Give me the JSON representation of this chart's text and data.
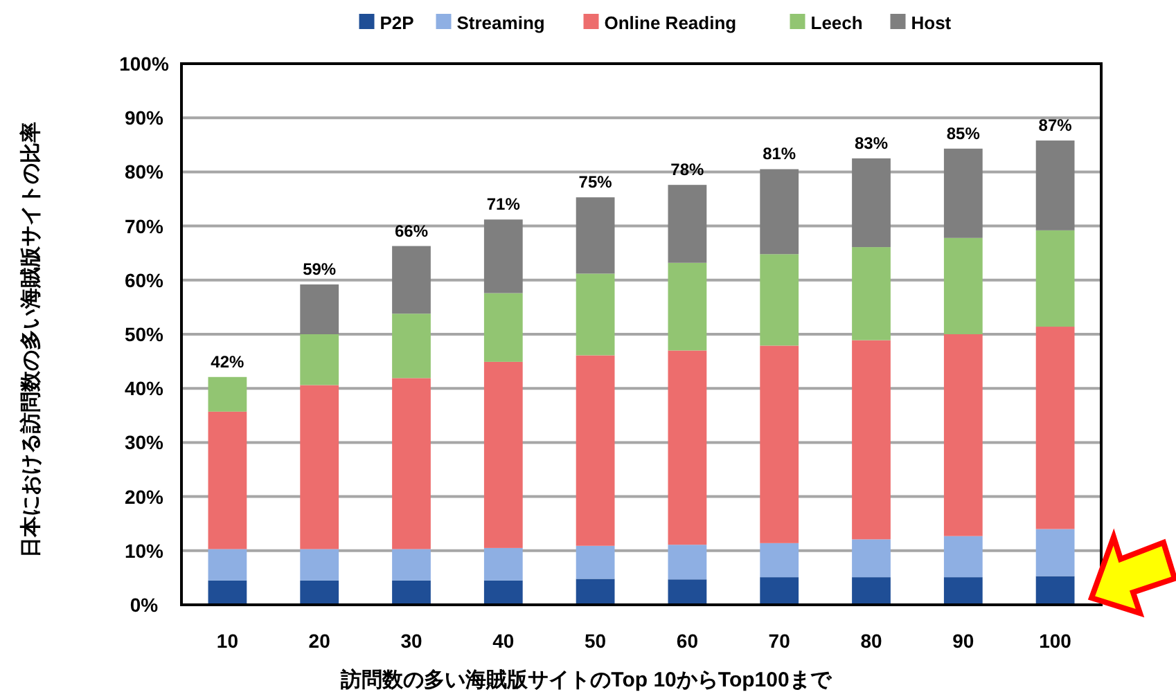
{
  "chart_data": {
    "type": "bar",
    "stacked": true,
    "xlabel": "訪問数の多い海賊版サイトのTop 10からTop100まで",
    "ylabel": "日本における訪問数の多い海賊版サイトの比率",
    "categories": [
      "10",
      "20",
      "30",
      "40",
      "50",
      "60",
      "70",
      "80",
      "90",
      "100"
    ],
    "series": [
      {
        "name": "P2P",
        "color": "#1f4e96",
        "values": [
          4.5,
          4.5,
          4.5,
          4.5,
          4.8,
          4.7,
          5.1,
          5.1,
          5.1,
          5.3
        ]
      },
      {
        "name": "Streaming",
        "color": "#8eafe3",
        "values": [
          5.8,
          5.8,
          5.8,
          6.0,
          6.1,
          6.4,
          6.3,
          7.0,
          7.6,
          8.7
        ]
      },
      {
        "name": "Online Reading",
        "color": "#ed6d6d",
        "values": [
          25.4,
          30.3,
          31.6,
          34.4,
          35.2,
          35.9,
          36.5,
          36.8,
          37.3,
          37.4
        ]
      },
      {
        "name": "Leech",
        "color": "#92c572",
        "values": [
          6.4,
          9.4,
          11.9,
          12.7,
          15.1,
          16.2,
          16.9,
          17.2,
          17.8,
          17.8
        ]
      },
      {
        "name": "Host",
        "color": "#7f7f7f",
        "values": [
          null,
          9.2,
          12.5,
          13.6,
          14.1,
          14.4,
          15.7,
          16.4,
          16.5,
          16.6
        ]
      }
    ],
    "totals": [
      "42%",
      "59%",
      "66%",
      "71%",
      "75%",
      "78%",
      "81%",
      "83%",
      "85%",
      "87%"
    ],
    "ylim": [
      0,
      100
    ],
    "yticks": [
      {
        "value": 0,
        "label": "0%"
      },
      {
        "value": 10,
        "label": "10%"
      },
      {
        "value": 20,
        "label": "20%"
      },
      {
        "value": 30,
        "label": "30%"
      },
      {
        "value": 40,
        "label": "40%"
      },
      {
        "value": 50,
        "label": "50%"
      },
      {
        "value": 60,
        "label": "60%"
      },
      {
        "value": 70,
        "label": "70%"
      },
      {
        "value": 80,
        "label": "80%"
      },
      {
        "value": 90,
        "label": "90%"
      },
      {
        "value": 100,
        "label": "100%"
      }
    ],
    "grid": "y",
    "legend": "top"
  }
}
